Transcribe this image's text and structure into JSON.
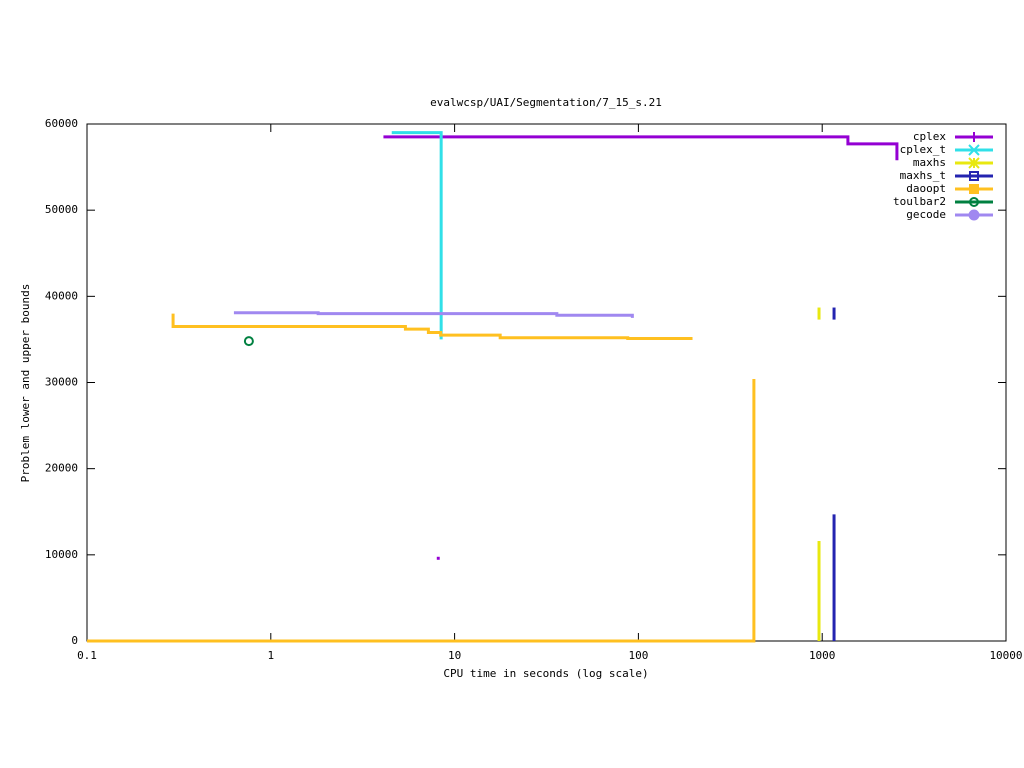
{
  "chart_data": {
    "type": "line",
    "title": "evalwcsp/UAI/Segmentation/7_15_s.21",
    "xlabel": "CPU time in seconds (log scale)",
    "ylabel": "Problem lower and upper bounds",
    "xscale": "log",
    "xlim": [
      0.1,
      10000
    ],
    "xticks": [
      0.1,
      1,
      10,
      100,
      1000,
      10000
    ],
    "ylim": [
      0,
      60000
    ],
    "yticks": [
      0,
      10000,
      20000,
      30000,
      40000,
      50000,
      60000
    ],
    "grid": false,
    "legend": "upper right",
    "series": [
      {
        "name": "cplex",
        "color": "#9400d3",
        "marker": "plus",
        "x": [
          4.1,
          1380,
          1380,
          2550,
          2550,
          null,
          8.0,
          8.3
        ],
        "values": [
          58500,
          58500,
          57700,
          57700,
          55800,
          null,
          9600,
          9600
        ]
      },
      {
        "name": "cplex_t",
        "color": "#30e0e8",
        "marker": "cross",
        "x": [
          4.55,
          8.45,
          8.45
        ],
        "values": [
          59000,
          59000,
          35000
        ]
      },
      {
        "name": "maxhs",
        "color": "#e8e810",
        "marker": "star",
        "x": [
          961,
          961,
          null,
          961,
          961
        ],
        "values": [
          0,
          11600,
          null,
          37300,
          38700
        ]
      },
      {
        "name": "maxhs_t",
        "color": "#2424b0",
        "marker": "square",
        "x": [
          1160,
          1160,
          null,
          1160,
          1160
        ],
        "values": [
          0,
          14700,
          null,
          37300,
          38700
        ]
      },
      {
        "name": "daoopt",
        "color": "#ffc020",
        "marker": "filled-square",
        "x": [
          0.1,
          425,
          425,
          null,
          0.294,
          0.294,
          5.4,
          5.4,
          7.2,
          7.2,
          8.4,
          8.4,
          17.7,
          17.7,
          87.5,
          87.5,
          197
        ],
        "values": [
          0,
          0,
          30400,
          null,
          38000,
          36500,
          36500,
          36200,
          36200,
          35800,
          35800,
          35500,
          35500,
          35200,
          35200,
          35100,
          35100
        ]
      },
      {
        "name": "toulbar2",
        "color": "#008040",
        "marker": "circle",
        "x": [
          0.76
        ],
        "values": [
          34800
        ]
      },
      {
        "name": "gecode",
        "color": "#a088f0",
        "marker": "filled-circle",
        "x": [
          0.63,
          1.81,
          1.81,
          36,
          36,
          92.7,
          92.7
        ],
        "values": [
          38100,
          38100,
          38000,
          38000,
          37800,
          37800,
          37500
        ]
      }
    ]
  }
}
